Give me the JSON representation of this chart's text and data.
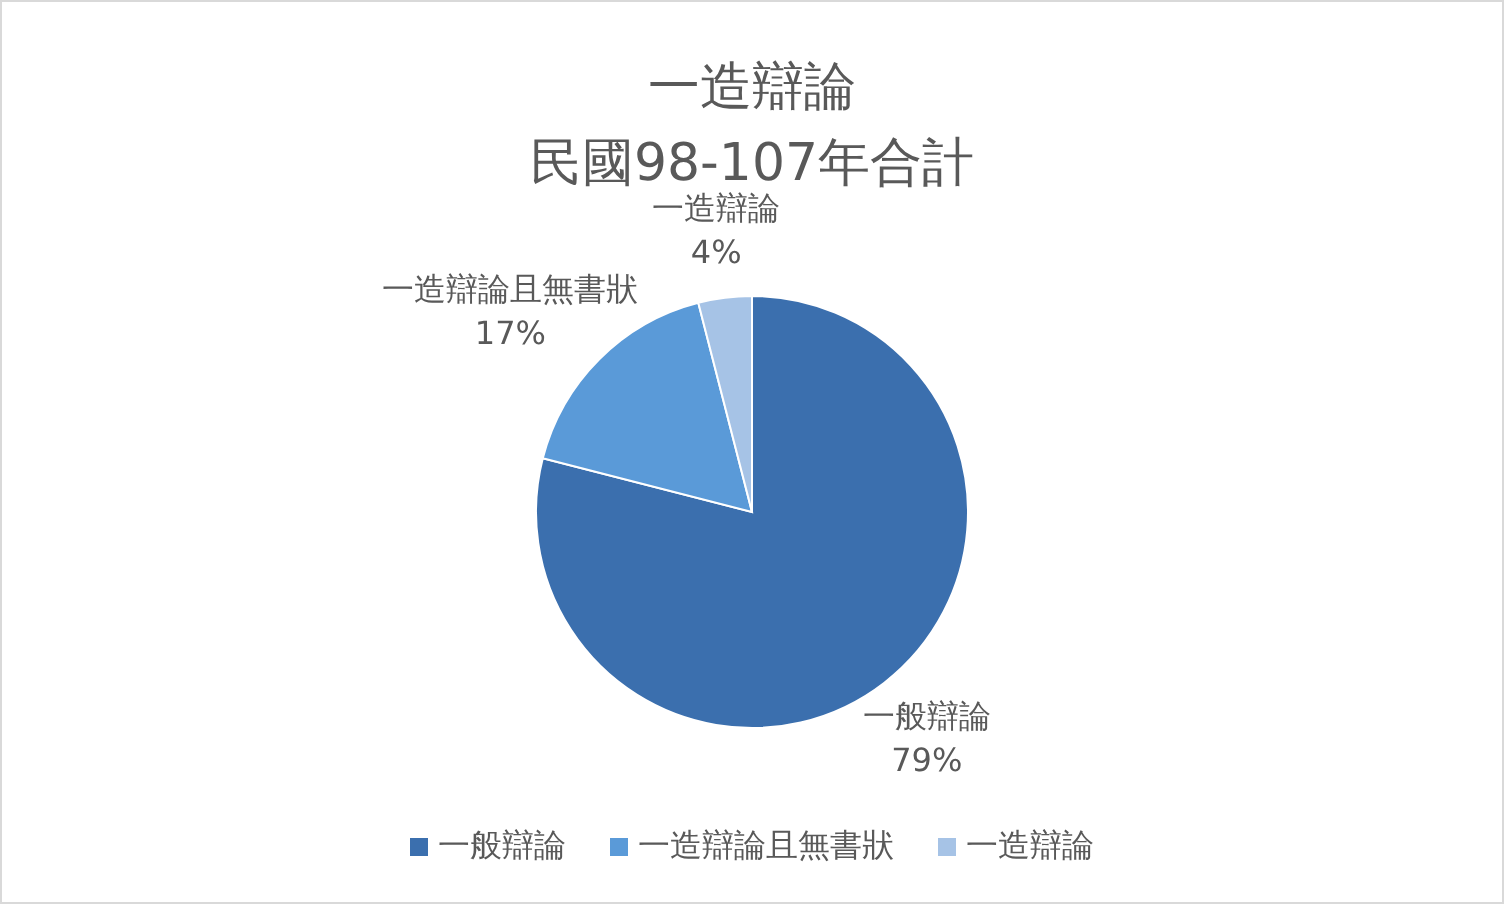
{
  "chart_data": {
    "type": "pie",
    "title": "一造辯論",
    "subtitle": "民國98-107年合計",
    "categories": [
      "一般辯論",
      "一造辯論且無書狀",
      "一造辯論"
    ],
    "values": [
      79,
      17,
      4
    ],
    "colors": [
      "#3b6fae",
      "#5a9ad8",
      "#a6c3e6"
    ],
    "value_labels": [
      "79%",
      "17%",
      "4%"
    ],
    "legend": "bottom"
  }
}
